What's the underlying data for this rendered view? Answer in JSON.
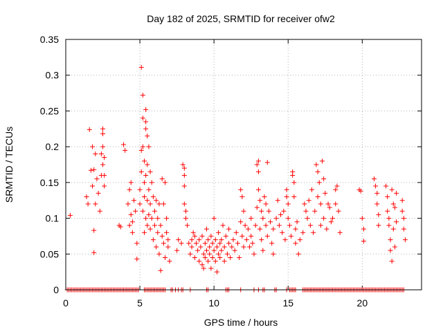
{
  "chart_data": {
    "type": "scatter",
    "title": "Day 182 of 2025, SRMTID for receiver ofw2",
    "xlabel": "GPS time / hours",
    "ylabel": "SRMTID / TECUs",
    "xlim": [
      0,
      24
    ],
    "ylim": [
      0,
      0.35
    ],
    "x_ticks": [
      0,
      5,
      10,
      15,
      20
    ],
    "x_tick_labels": [
      "0",
      "5",
      "10",
      "15",
      "20"
    ],
    "y_ticks": [
      0,
      0.05,
      0.1,
      0.15,
      0.2,
      0.25,
      0.3,
      0.35
    ],
    "y_tick_labels": [
      "0",
      "0.05",
      "0.1",
      "0.15",
      "0.2",
      "0.25",
      "0.3",
      "0.35"
    ],
    "grid": true,
    "legend": "none",
    "marker": "+",
    "colors": {
      "series": "#ff0000",
      "grid": "#b0b0b0",
      "axis": "#000000"
    },
    "series": [
      {
        "name": "SRMTID",
        "points": [
          [
            0.3,
            0.104
          ],
          [
            1.4,
            0.13
          ],
          [
            1.5,
            0.12
          ],
          [
            1.6,
            0.224
          ],
          [
            1.7,
            0.167
          ],
          [
            1.8,
            0.2
          ],
          [
            1.8,
            0.145
          ],
          [
            1.9,
            0.083
          ],
          [
            1.9,
            0.052
          ],
          [
            1.9,
            0.168
          ],
          [
            2.0,
            0.12
          ],
          [
            2.0,
            0.19
          ],
          [
            2.1,
            0.155
          ],
          [
            2.2,
            0.135
          ],
          [
            2.3,
            0.11
          ],
          [
            2.4,
            0.16
          ],
          [
            2.4,
            0.19
          ],
          [
            2.5,
            0.225
          ],
          [
            2.5,
            0.218
          ],
          [
            2.5,
            0.2
          ],
          [
            2.5,
            0.175
          ],
          [
            2.6,
            0.145
          ],
          [
            2.6,
            0.16
          ],
          [
            2.6,
            0.185
          ],
          [
            3.6,
            0.09
          ],
          [
            3.7,
            0.088
          ],
          [
            3.9,
            0.203
          ],
          [
            4.0,
            0.195
          ],
          [
            4.2,
            0.12
          ],
          [
            4.3,
            0.09
          ],
          [
            4.3,
            0.14
          ],
          [
            4.4,
            0.15
          ],
          [
            4.4,
            0.105
          ],
          [
            4.5,
            0.08
          ],
          [
            4.5,
            0.095
          ],
          [
            4.6,
            0.125
          ],
          [
            4.7,
            0.11
          ],
          [
            4.8,
            0.065
          ],
          [
            4.8,
            0.043
          ],
          [
            5.0,
            0.12
          ],
          [
            5.0,
            0.14
          ],
          [
            5.1,
            0.311
          ],
          [
            5.1,
            0.195
          ],
          [
            5.1,
            0.165
          ],
          [
            5.2,
            0.272
          ],
          [
            5.2,
            0.24
          ],
          [
            5.2,
            0.2
          ],
          [
            5.2,
            0.11
          ],
          [
            5.3,
            0.18
          ],
          [
            5.3,
            0.15
          ],
          [
            5.3,
            0.13
          ],
          [
            5.3,
            0.08
          ],
          [
            5.4,
            0.252
          ],
          [
            5.4,
            0.235
          ],
          [
            5.4,
            0.225
          ],
          [
            5.4,
            0.16
          ],
          [
            5.4,
            0.1
          ],
          [
            5.5,
            0.215
          ],
          [
            5.5,
            0.175
          ],
          [
            5.5,
            0.125
          ],
          [
            5.5,
            0.09
          ],
          [
            5.6,
            0.2
          ],
          [
            5.6,
            0.14
          ],
          [
            5.6,
            0.105
          ],
          [
            5.7,
            0.165
          ],
          [
            5.7,
            0.12
          ],
          [
            5.7,
            0.085
          ],
          [
            5.8,
            0.15
          ],
          [
            5.8,
            0.1
          ],
          [
            5.9,
            0.13
          ],
          [
            5.9,
            0.07
          ],
          [
            6.0,
            0.11
          ],
          [
            6.0,
            0.09
          ],
          [
            6.1,
            0.125
          ],
          [
            6.1,
            0.06
          ],
          [
            6.2,
            0.1
          ],
          [
            6.2,
            0.08
          ],
          [
            6.3,
            0.12
          ],
          [
            6.3,
            0.05
          ],
          [
            6.4,
            0.09
          ],
          [
            6.4,
            0.027
          ],
          [
            6.5,
            0.155
          ],
          [
            6.5,
            0.075
          ],
          [
            6.6,
            0.065
          ],
          [
            6.6,
            0.12
          ],
          [
            6.7,
            0.045
          ],
          [
            6.7,
            0.15
          ],
          [
            6.8,
            0.08
          ],
          [
            6.8,
            0.1
          ],
          [
            6.9,
            0.06
          ],
          [
            6.9,
            0.07
          ],
          [
            7.0,
            0.04
          ],
          [
            7.5,
            0.055
          ],
          [
            7.6,
            0.07
          ],
          [
            7.8,
            0.065
          ],
          [
            7.9,
            0.175
          ],
          [
            8.0,
            0.17
          ],
          [
            8.0,
            0.16
          ],
          [
            8.0,
            0.145
          ],
          [
            8.0,
            0.12
          ],
          [
            8.1,
            0.11
          ],
          [
            8.1,
            0.1
          ],
          [
            8.2,
            0.09
          ],
          [
            8.3,
            0.065
          ],
          [
            8.4,
            0.05
          ],
          [
            8.5,
            0.07
          ],
          [
            8.5,
            0.06
          ],
          [
            8.6,
            0.08
          ],
          [
            8.7,
            0.075
          ],
          [
            8.7,
            0.045
          ],
          [
            8.8,
            0.065
          ],
          [
            8.9,
            0.055
          ],
          [
            9.0,
            0.07
          ],
          [
            9.0,
            0.04
          ],
          [
            9.1,
            0.06
          ],
          [
            9.2,
            0.075
          ],
          [
            9.2,
            0.035
          ],
          [
            9.3,
            0.05
          ],
          [
            9.3,
            0.03
          ],
          [
            9.4,
            0.065
          ],
          [
            9.4,
            0.045
          ],
          [
            9.5,
            0.055
          ],
          [
            9.5,
            0.085
          ],
          [
            9.6,
            0.07
          ],
          [
            9.6,
            0.04
          ],
          [
            9.7,
            0.05
          ],
          [
            9.7,
            0.06
          ],
          [
            9.8,
            0.03
          ],
          [
            9.8,
            0.075
          ],
          [
            9.9,
            0.045
          ],
          [
            9.9,
            0.065
          ],
          [
            10.0,
            0.055
          ],
          [
            10.0,
            0.1
          ],
          [
            10.1,
            0.04
          ],
          [
            10.1,
            0.07
          ],
          [
            10.2,
            0.06
          ],
          [
            10.2,
            0.025
          ],
          [
            10.3,
            0.08
          ],
          [
            10.3,
            0.05
          ],
          [
            10.4,
            0.065
          ],
          [
            10.4,
            0.045
          ],
          [
            10.5,
            0.07
          ],
          [
            10.5,
            0.055
          ],
          [
            10.6,
            0.09
          ],
          [
            10.7,
            0.06
          ],
          [
            10.7,
            0.04
          ],
          [
            10.8,
            0.075
          ],
          [
            10.9,
            0.05
          ],
          [
            11.0,
            0.065
          ],
          [
            11.0,
            0.085
          ],
          [
            11.1,
            0.045
          ],
          [
            11.2,
            0.06
          ],
          [
            11.3,
            0.07
          ],
          [
            11.4,
            0.055
          ],
          [
            11.5,
            0.08
          ],
          [
            11.6,
            0.065
          ],
          [
            11.7,
            0.045
          ],
          [
            11.8,
            0.095
          ],
          [
            11.8,
            0.14
          ],
          [
            11.9,
            0.13
          ],
          [
            11.9,
            0.075
          ],
          [
            12.0,
            0.11
          ],
          [
            12.0,
            0.06
          ],
          [
            12.1,
            0.09
          ],
          [
            12.2,
            0.07
          ],
          [
            12.3,
            0.085
          ],
          [
            12.4,
            0.06
          ],
          [
            12.5,
            0.1
          ],
          [
            12.5,
            0.075
          ],
          [
            12.6,
            0.065
          ],
          [
            12.7,
            0.05
          ],
          [
            12.8,
            0.09
          ],
          [
            12.9,
            0.115
          ],
          [
            12.9,
            0.175
          ],
          [
            13.0,
            0.18
          ],
          [
            13.0,
            0.165
          ],
          [
            13.0,
            0.14
          ],
          [
            13.1,
            0.125
          ],
          [
            13.1,
            0.085
          ],
          [
            13.2,
            0.11
          ],
          [
            13.2,
            0.07
          ],
          [
            13.3,
            0.1
          ],
          [
            13.3,
            0.055
          ],
          [
            13.4,
            0.13
          ],
          [
            13.5,
            0.12
          ],
          [
            13.5,
            0.09
          ],
          [
            13.6,
            0.075
          ],
          [
            13.6,
            0.178
          ],
          [
            13.7,
            0.11
          ],
          [
            13.8,
            0.095
          ],
          [
            13.9,
            0.065
          ],
          [
            14.0,
            0.085
          ],
          [
            14.0,
            0.05
          ],
          [
            14.2,
            0.1
          ],
          [
            14.3,
            0.125
          ],
          [
            14.4,
            0.09
          ],
          [
            14.5,
            0.105
          ],
          [
            14.6,
            0.08
          ],
          [
            14.7,
            0.11
          ],
          [
            14.8,
            0.07
          ],
          [
            14.9,
            0.13
          ],
          [
            14.9,
            0.14
          ],
          [
            15.0,
            0.1
          ],
          [
            15.0,
            0.12
          ],
          [
            15.1,
            0.09
          ],
          [
            15.2,
            0.075
          ],
          [
            15.3,
            0.16
          ],
          [
            15.3,
            0.165
          ],
          [
            15.4,
            0.15
          ],
          [
            15.4,
            0.13
          ],
          [
            15.5,
            0.085
          ],
          [
            15.5,
            0.065
          ],
          [
            15.6,
            0.095
          ],
          [
            15.7,
            0.05
          ],
          [
            15.8,
            0.07
          ],
          [
            16.0,
            0.08
          ],
          [
            16.1,
            0.12
          ],
          [
            16.2,
            0.11
          ],
          [
            16.3,
            0.1
          ],
          [
            16.4,
            0.125
          ],
          [
            16.5,
            0.09
          ],
          [
            16.6,
            0.14
          ],
          [
            16.7,
            0.08
          ],
          [
            16.8,
            0.11
          ],
          [
            16.9,
            0.175
          ],
          [
            17.0,
            0.165
          ],
          [
            17.0,
            0.13
          ],
          [
            17.1,
            0.15
          ],
          [
            17.2,
            0.09
          ],
          [
            17.2,
            0.12
          ],
          [
            17.3,
            0.18
          ],
          [
            17.4,
            0.155
          ],
          [
            17.4,
            0.1
          ],
          [
            17.5,
            0.135
          ],
          [
            17.6,
            0.085
          ],
          [
            17.7,
            0.12
          ],
          [
            17.8,
            0.115
          ],
          [
            17.9,
            0.095
          ],
          [
            18.0,
            0.1
          ],
          [
            18.2,
            0.14
          ],
          [
            18.2,
            0.12
          ],
          [
            18.3,
            0.145
          ],
          [
            18.4,
            0.11
          ],
          [
            18.5,
            0.08
          ],
          [
            19.8,
            0.14
          ],
          [
            19.9,
            0.138
          ],
          [
            20.0,
            0.1
          ],
          [
            20.1,
            0.085
          ],
          [
            20.1,
            0.068
          ],
          [
            20.8,
            0.155
          ],
          [
            20.9,
            0.145
          ],
          [
            21.0,
            0.135
          ],
          [
            21.0,
            0.12
          ],
          [
            21.1,
            0.105
          ],
          [
            21.1,
            0.09
          ],
          [
            21.6,
            0.145
          ],
          [
            21.7,
            0.13
          ],
          [
            21.7,
            0.11
          ],
          [
            21.8,
            0.1
          ],
          [
            21.8,
            0.09
          ],
          [
            21.9,
            0.07
          ],
          [
            21.9,
            0.055
          ],
          [
            22.0,
            0.14
          ],
          [
            22.0,
            0.04
          ],
          [
            22.1,
            0.12
          ],
          [
            22.1,
            0.085
          ],
          [
            22.2,
            0.115
          ],
          [
            22.2,
            0.06
          ],
          [
            22.3,
            0.135
          ],
          [
            22.3,
            0.095
          ],
          [
            22.7,
            0.11
          ],
          [
            22.7,
            0.125
          ],
          [
            22.8,
            0.085
          ],
          [
            22.8,
            0.1
          ],
          [
            22.9,
            0.07
          ]
        ],
        "zero_value_hours": [
          0.1,
          0.2,
          0.3,
          0.4,
          0.5,
          0.6,
          0.7,
          0.8,
          0.9,
          1.0,
          1.1,
          1.2,
          1.3,
          1.4,
          1.5,
          1.6,
          1.7,
          1.8,
          1.9,
          2.0,
          2.1,
          2.2,
          2.3,
          2.4,
          2.5,
          2.6,
          2.7,
          2.8,
          2.9,
          3.0,
          3.1,
          3.2,
          3.3,
          3.4,
          3.5,
          3.6,
          3.7,
          3.8,
          3.9,
          4.0,
          4.1,
          4.2,
          4.3,
          4.4,
          4.5,
          4.6,
          4.7,
          4.8,
          4.9,
          5.3,
          5.4,
          5.5,
          5.6,
          5.7,
          5.8,
          5.9,
          6.0,
          6.1,
          6.2,
          6.3,
          6.4,
          6.5,
          6.6,
          6.7,
          7.1,
          7.2,
          7.4,
          7.6,
          7.8,
          7.9,
          8.4,
          9.5,
          9.6,
          10.8,
          10.9,
          11.0,
          11.8,
          12.7,
          13.0,
          13.3,
          13.4,
          14.1,
          14.2,
          14.9,
          15.1,
          15.2,
          15.3,
          15.4,
          15.5,
          16.0,
          16.1,
          16.2,
          16.3,
          16.4,
          16.5,
          16.6,
          16.7,
          16.8,
          16.9,
          17.0,
          17.1,
          17.2,
          17.3,
          17.4,
          17.5,
          17.6,
          17.7,
          17.8,
          17.9,
          18.0,
          18.1,
          18.2,
          18.3,
          18.4,
          18.5,
          18.6,
          18.7,
          18.8,
          18.9,
          19.0,
          19.1,
          19.2,
          19.3,
          19.4,
          19.5,
          19.6,
          19.7,
          19.8,
          19.9,
          20.0,
          20.1,
          20.2,
          20.3,
          20.4,
          20.5,
          20.6,
          20.7,
          20.8,
          20.9,
          21.0,
          21.1,
          21.2,
          21.3,
          21.4,
          21.5,
          21.6,
          21.7,
          21.8,
          21.9,
          22.0,
          22.1,
          22.2,
          22.3,
          22.4,
          22.5,
          22.6,
          22.7,
          22.8
        ]
      }
    ]
  }
}
